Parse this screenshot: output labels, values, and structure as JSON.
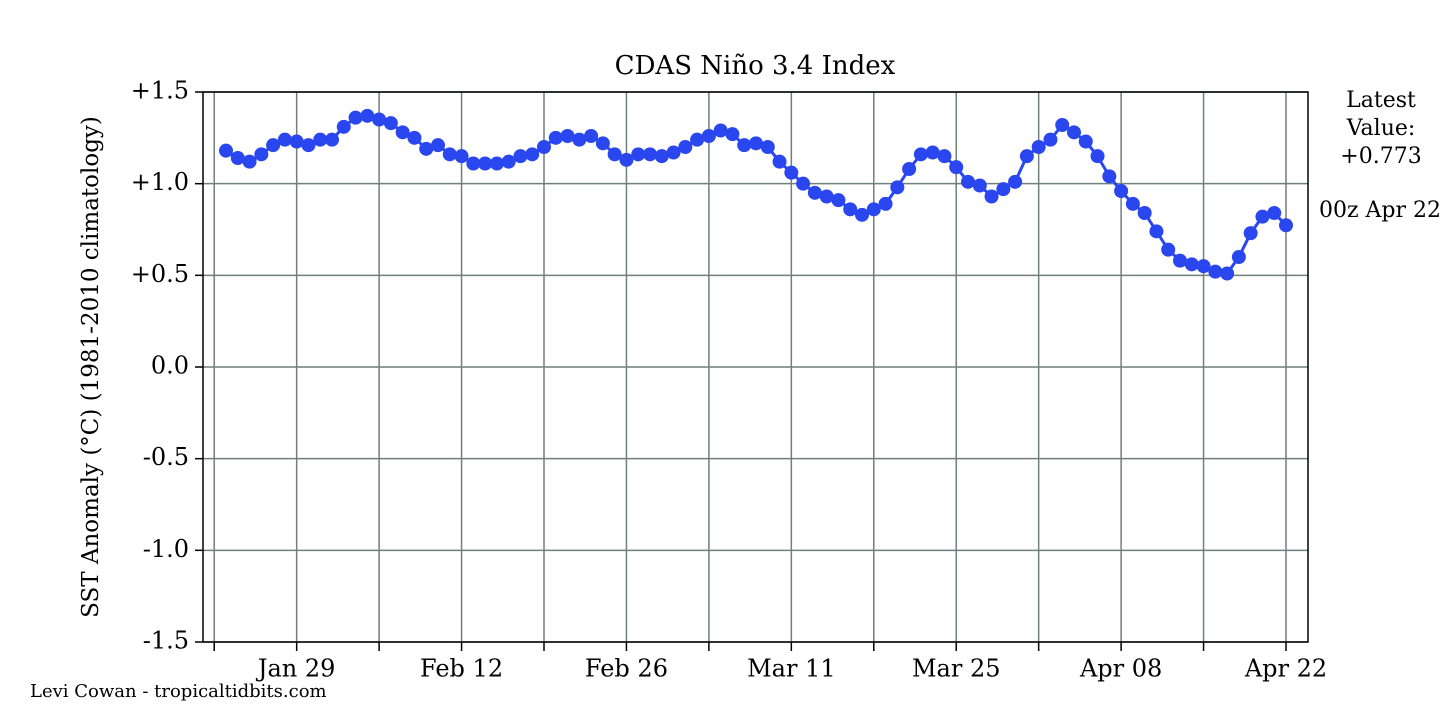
{
  "chart_data": {
    "type": "line",
    "title": "CDAS Niño 3.4 Index",
    "y_label": "SST Anomaly (°C) (1981-2010 climatology)",
    "latest_label": [
      "Latest",
      "Value:",
      "+0.773"
    ],
    "latest_time": "00z Apr 22",
    "credit": "Levi Cowan - tropicaltidbits.com",
    "color": "#2a46ee",
    "grid": true,
    "ylim": [
      -1.5,
      1.5
    ],
    "yticks": [
      {
        "value": 1.5,
        "label": "+1.5"
      },
      {
        "value": 1.0,
        "label": "+1.0"
      },
      {
        "value": 0.5,
        "label": "+0.5"
      },
      {
        "value": 0,
        "label": "0.0"
      },
      {
        "value": -0.5,
        "label": "-0.5"
      },
      {
        "value": -1.0,
        "label": "-1.0"
      },
      {
        "value": -1.5,
        "label": "-1.5"
      }
    ],
    "categories": [
      null,
      null,
      null,
      null,
      null,
      null,
      "Jan 29",
      null,
      null,
      null,
      null,
      null,
      null,
      null,
      null,
      null,
      null,
      null,
      null,
      null,
      "Feb 12",
      null,
      null,
      null,
      null,
      null,
      null,
      null,
      null,
      null,
      null,
      null,
      null,
      null,
      "Feb 26",
      null,
      null,
      null,
      null,
      null,
      null,
      null,
      null,
      null,
      null,
      null,
      null,
      null,
      "Mar 11",
      null,
      null,
      null,
      null,
      null,
      null,
      null,
      null,
      null,
      null,
      null,
      null,
      null,
      "Mar 25",
      null,
      null,
      null,
      null,
      null,
      null,
      null,
      null,
      null,
      null,
      null,
      null,
      null,
      "Apr 08",
      null,
      null,
      null,
      null,
      null,
      null,
      null,
      null,
      null,
      null,
      null,
      null,
      null,
      "Apr 22"
    ],
    "values": [
      1.18,
      1.14,
      1.12,
      1.16,
      1.21,
      1.24,
      1.23,
      1.21,
      1.24,
      1.24,
      1.31,
      1.36,
      1.37,
      1.35,
      1.33,
      1.28,
      1.25,
      1.19,
      1.21,
      1.16,
      1.15,
      1.11,
      1.11,
      1.11,
      1.12,
      1.15,
      1.16,
      1.2,
      1.25,
      1.26,
      1.24,
      1.26,
      1.22,
      1.16,
      1.13,
      1.16,
      1.16,
      1.15,
      1.17,
      1.2,
      1.24,
      1.26,
      1.29,
      1.27,
      1.21,
      1.22,
      1.2,
      1.12,
      1.06,
      1.0,
      0.95,
      0.93,
      0.91,
      0.86,
      0.83,
      0.86,
      0.89,
      0.98,
      1.08,
      1.16,
      1.17,
      1.15,
      1.09,
      1.01,
      0.99,
      0.93,
      0.97,
      1.01,
      1.15,
      1.2,
      1.24,
      1.32,
      1.28,
      1.23,
      1.15,
      1.04,
      0.96,
      0.89,
      0.84,
      0.74,
      0.64,
      0.58,
      0.56,
      0.55,
      0.52,
      0.51,
      0.6,
      0.73,
      0.82,
      0.84,
      0.773
    ]
  }
}
